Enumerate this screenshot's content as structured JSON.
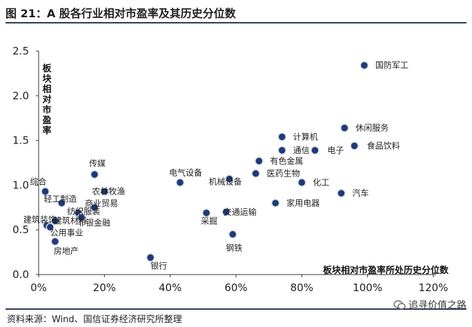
{
  "figure": {
    "title": "图 21：A 股各行业相对市盈率及其历史分位数",
    "source": "资料来源：Wind、国信证券经济研究所整理",
    "watermark": "追寻价值之路"
  },
  "colors": {
    "marker_fill": "#1f3a78",
    "marker_stroke": "#d9dde8",
    "rule": "#2b3a55"
  },
  "chart_data": {
    "type": "scatter",
    "title": "",
    "xlabel": "板块相对市盈率所处历史分位数",
    "ylabel": "板块相对市盈率",
    "xlim": [
      0,
      1.2
    ],
    "ylim": [
      0,
      2.5
    ],
    "x_ticks": [
      0,
      0.2,
      0.4,
      0.6,
      0.8,
      1.0,
      1.2
    ],
    "x_tick_labels": [
      "0%",
      "20%",
      "40%",
      "60%",
      "80%",
      "100%",
      "120%"
    ],
    "y_ticks": [
      0,
      0.5,
      1.0,
      1.5,
      2.0,
      2.5
    ],
    "y_tick_labels": [
      "0.0",
      "0.5",
      "1.0",
      "1.5",
      "2.0",
      "2.5"
    ],
    "grid": false,
    "legend": "none",
    "points": [
      {
        "name": "国防军工",
        "x": 0.99,
        "y": 2.34
      },
      {
        "name": "休闲服务",
        "x": 0.93,
        "y": 1.64
      },
      {
        "name": "食品饮料",
        "x": 0.96,
        "y": 1.44
      },
      {
        "name": "计算机",
        "x": 0.74,
        "y": 1.54
      },
      {
        "name": "通信",
        "x": 0.74,
        "y": 1.39
      },
      {
        "name": "电子",
        "x": 0.84,
        "y": 1.39
      },
      {
        "name": "有色金属",
        "x": 0.67,
        "y": 1.27
      },
      {
        "name": "医药生物",
        "x": 0.66,
        "y": 1.13
      },
      {
        "name": "化工",
        "x": 0.8,
        "y": 1.03
      },
      {
        "name": "汽车",
        "x": 0.92,
        "y": 0.91
      },
      {
        "name": "家用电器",
        "x": 0.72,
        "y": 0.8
      },
      {
        "name": "机械设备",
        "x": 0.58,
        "y": 1.07
      },
      {
        "name": "电气设备",
        "x": 0.43,
        "y": 1.03
      },
      {
        "name": "交通运输",
        "x": 0.57,
        "y": 0.7
      },
      {
        "name": "采掘",
        "x": 0.51,
        "y": 0.69
      },
      {
        "name": "钢铁",
        "x": 0.59,
        "y": 0.45
      },
      {
        "name": "银行",
        "x": 0.34,
        "y": 0.19
      },
      {
        "name": "传媒",
        "x": 0.17,
        "y": 1.12
      },
      {
        "name": "农林牧渔",
        "x": 0.2,
        "y": 0.93
      },
      {
        "name": "商业贸易",
        "x": 0.17,
        "y": 0.75
      },
      {
        "name": "纺织服装",
        "x": 0.12,
        "y": 0.69
      },
      {
        "name": "非银金融",
        "x": 0.13,
        "y": 0.64
      },
      {
        "name": "综合",
        "x": 0.02,
        "y": 0.93
      },
      {
        "name": "轻工制造",
        "x": 0.07,
        "y": 0.8
      },
      {
        "name": "建筑材料",
        "x": 0.05,
        "y": 0.6
      },
      {
        "name": "建筑装饰",
        "x": 0.025,
        "y": 0.55
      },
      {
        "name": "公用事业",
        "x": 0.035,
        "y": 0.53
      },
      {
        "name": "房地产",
        "x": 0.05,
        "y": 0.37
      }
    ]
  }
}
